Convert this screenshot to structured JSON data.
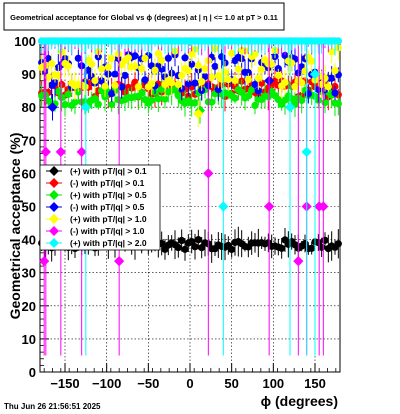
{
  "chart_data": {
    "type": "scatter",
    "title": "Geometrical acceptance for Global vs ϕ (degrees) at |  η  | <= 1.0 at pT > 0.11",
    "xlabel": "ϕ (degrees)",
    "ylabel": "Geometrical acceptance (%)",
    "xlim": [
      -180,
      180
    ],
    "ylim": [
      0,
      100
    ],
    "x_ticks": [
      -150,
      -100,
      -50,
      0,
      50,
      100,
      150
    ],
    "x_tick_labels": [
      "−150",
      "−100",
      "−50",
      "0",
      "50",
      "100",
      "150"
    ],
    "y_ticks": [
      0,
      10,
      20,
      30,
      40,
      50,
      60,
      70,
      80,
      90,
      100
    ],
    "y_tick_labels": [
      "0",
      "10",
      "20",
      "30",
      "40",
      "50",
      "60",
      "70",
      "80",
      "90",
      "100"
    ],
    "grid": true,
    "legend_position": "left-center",
    "timestamp": "Thu Jun 26 21:56:51 2025",
    "series": [
      {
        "name": "(+) with pT/|q| > 0.1",
        "color": "#000000",
        "base": 38.5,
        "spread": 1.5,
        "outliers": []
      },
      {
        "name": "(-) with pT/|q| > 0.1",
        "color": "#ff0000",
        "base": 85.5,
        "spread": 2.5,
        "outliers": [
          [
            95,
            86
          ]
        ]
      },
      {
        "name": "(+) with pT/|q| > 0.5",
        "color": "#00ee00",
        "base": 83.0,
        "spread": 2.5,
        "outliers": [
          [
            12,
            79
          ]
        ]
      },
      {
        "name": "(-) with pT/|q| > 0.5",
        "color": "#0000ff",
        "base": 90.0,
        "spread": 6.0,
        "outliers": [
          [
            -165,
            80
          ],
          [
            95,
            88
          ]
        ]
      },
      {
        "name": "(+) with pT/|q| > 1.0",
        "color": "#ffff00",
        "base": 92.0,
        "spread": 6.0,
        "outliers": [
          [
            10,
            78
          ]
        ]
      },
      {
        "name": "(-) with pT/|q| > 1.0",
        "color": "#ff00ff",
        "base": 100.0,
        "spread": 0.0,
        "outliers": [
          [
            -175,
            33.5
          ],
          [
            -173,
            66.5
          ],
          [
            -155,
            66.5
          ],
          [
            -130,
            66.5
          ],
          [
            -85,
            33.5
          ],
          [
            22,
            60
          ],
          [
            95,
            50
          ],
          [
            130,
            33.5
          ],
          [
            140,
            50
          ],
          [
            155,
            50
          ],
          [
            160,
            50
          ]
        ]
      },
      {
        "name": "(+) with pT/|q| > 2.0",
        "color": "#00ffff",
        "base": 100.0,
        "spread": 0.0,
        "outliers": [
          [
            -125,
            80
          ],
          [
            40,
            50
          ],
          [
            120,
            80
          ],
          [
            140,
            66.5
          ],
          [
            150,
            90
          ]
        ]
      }
    ]
  }
}
